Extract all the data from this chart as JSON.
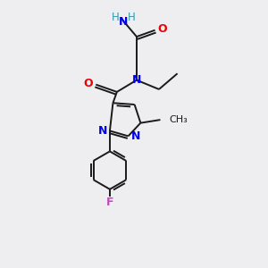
{
  "background_color": "#eeeef0",
  "bond_color": "#1a1a1a",
  "N_color": "#0000ee",
  "O_color": "#ee0000",
  "F_color": "#cc44cc",
  "H_color": "#3399aa",
  "figsize": [
    3.0,
    3.0
  ],
  "dpi": 100,
  "lw": 1.4,
  "fs": 8.5,
  "xlim": [
    2.0,
    8.0
  ],
  "ylim": [
    0.5,
    10.5
  ]
}
